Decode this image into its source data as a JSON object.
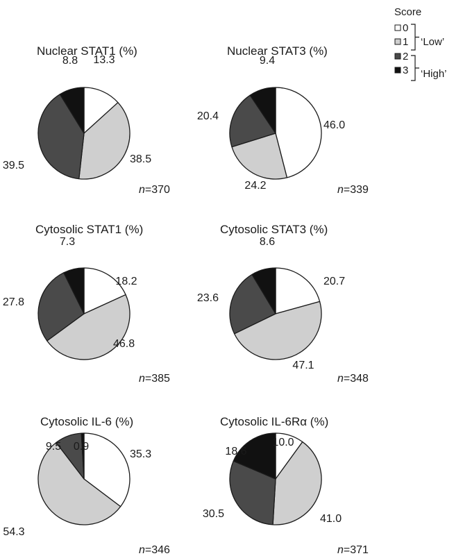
{
  "legend": {
    "title": "Score",
    "items": [
      {
        "label": "0",
        "color": "#ffffff"
      },
      {
        "label": "1",
        "color": "#cfcfcf"
      },
      {
        "label": "2",
        "color": "#4a4a4a"
      },
      {
        "label": "3",
        "color": "#111111"
      }
    ],
    "groups": [
      {
        "label": "‘Low’",
        "scores": [
          "0",
          "1"
        ]
      },
      {
        "label": "‘High’",
        "scores": [
          "2",
          "3"
        ]
      }
    ]
  },
  "chart_data": [
    {
      "type": "pie",
      "title": "Nuclear STAT1 (%)",
      "n_label": "=370",
      "categories": [
        "0",
        "1",
        "2",
        "3"
      ],
      "values": [
        13.3,
        38.5,
        39.5,
        8.8
      ],
      "value_labels": [
        "13.3",
        "38.5",
        "39.5",
        "8.8"
      ]
    },
    {
      "type": "pie",
      "title": "Nuclear STAT3 (%)",
      "n_label": "=339",
      "categories": [
        "0",
        "1",
        "2",
        "3"
      ],
      "values": [
        46.0,
        24.2,
        20.4,
        9.4
      ],
      "value_labels": [
        "46.0",
        "24.2",
        "20.4",
        "9.4"
      ]
    },
    {
      "type": "pie",
      "title": "Cytosolic STAT1 (%)",
      "n_label": "=385",
      "categories": [
        "0",
        "1",
        "2",
        "3"
      ],
      "values": [
        18.2,
        46.8,
        27.8,
        7.3
      ],
      "value_labels": [
        "18.2",
        "46.8",
        "27.8",
        "7.3"
      ]
    },
    {
      "type": "pie",
      "title": "Cytosolic STAT3 (%)",
      "n_label": "=348",
      "categories": [
        "0",
        "1",
        "2",
        "3"
      ],
      "values": [
        20.7,
        47.1,
        23.6,
        8.6
      ],
      "value_labels": [
        "20.7",
        "47.1",
        "23.6",
        "8.6"
      ]
    },
    {
      "type": "pie",
      "title": "Cytosolic IL-6 (%)",
      "n_label": "=346",
      "categories": [
        "0",
        "1",
        "2",
        "3"
      ],
      "values": [
        35.3,
        54.3,
        9.5,
        0.9
      ],
      "value_labels": [
        "35.3",
        "54.3",
        "9.5",
        "0.9"
      ]
    },
    {
      "type": "pie",
      "title": "Cytosolic IL-6Rα (%)",
      "n_label": "=371",
      "categories": [
        "0",
        "1",
        "2",
        "3"
      ],
      "values": [
        10.0,
        41.0,
        30.5,
        18.6
      ],
      "value_labels": [
        "10.0",
        "41.0",
        "30.5",
        "18.6"
      ]
    }
  ]
}
